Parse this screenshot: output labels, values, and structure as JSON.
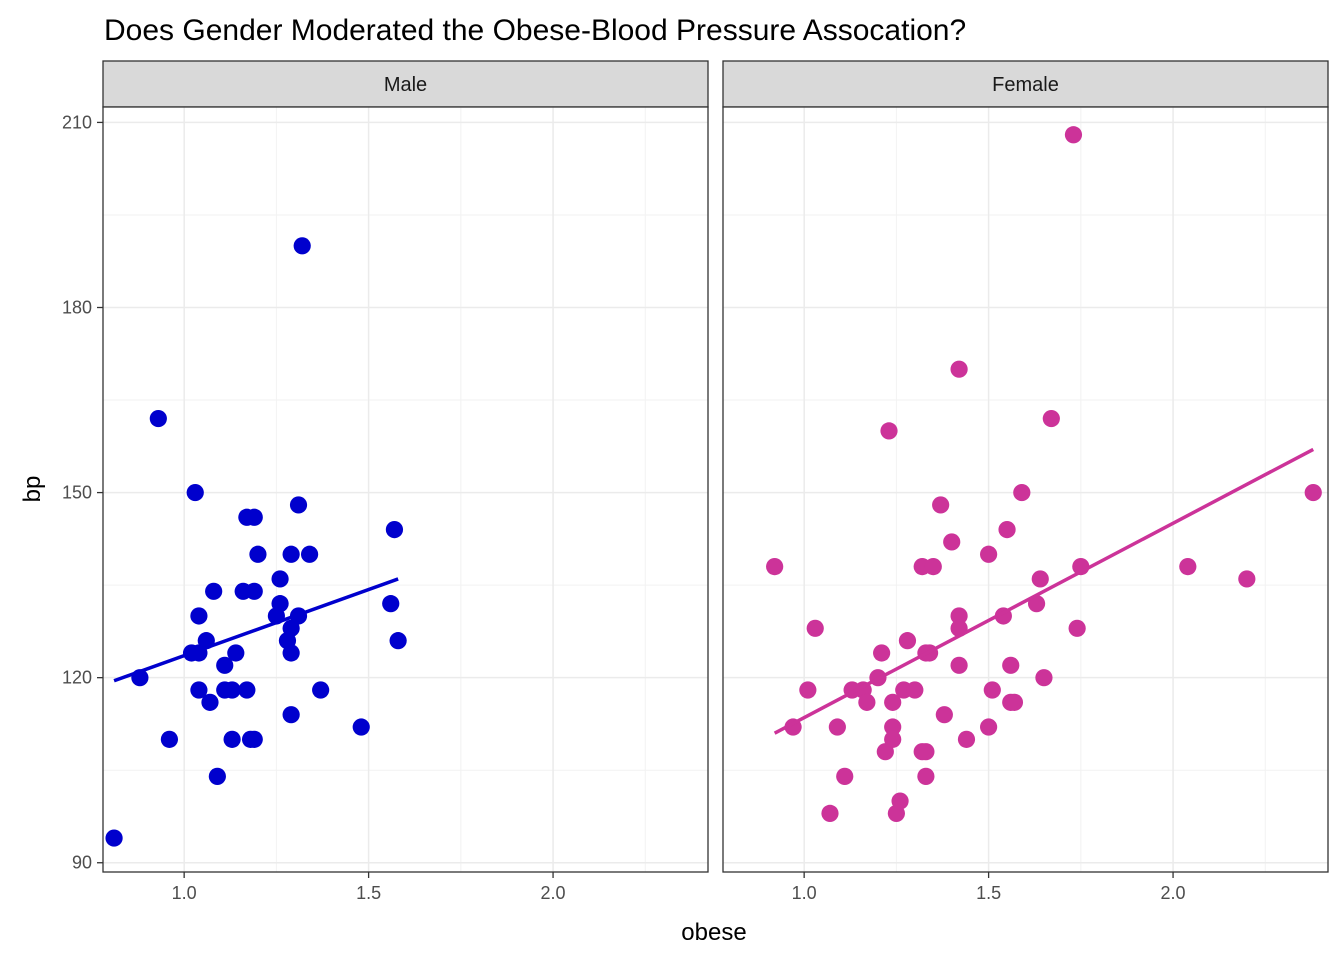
{
  "chart_data": {
    "type": "scatter",
    "title": "Does Gender Moderated the Obese-Blood Pressure Assocation?",
    "xlabel": "obese",
    "ylabel": "bp",
    "xlim": [
      0.78,
      2.42
    ],
    "ylim": [
      88.5,
      212.5
    ],
    "x_ticks": [
      1.0,
      1.5,
      2.0
    ],
    "x_tick_labels": [
      "1.0",
      "1.5",
      "2.0"
    ],
    "y_ticks": [
      90,
      120,
      150,
      180,
      210
    ],
    "y_tick_labels": [
      "90",
      "120",
      "150",
      "180",
      "210"
    ],
    "grid": true,
    "legend": "none",
    "facets": [
      {
        "label": "Male",
        "color": "#0000CD",
        "points": [
          [
            0.81,
            94
          ],
          [
            0.88,
            120
          ],
          [
            0.93,
            162
          ],
          [
            0.96,
            110
          ],
          [
            1.02,
            124
          ],
          [
            1.03,
            150
          ],
          [
            1.04,
            124
          ],
          [
            1.04,
            118
          ],
          [
            1.04,
            130
          ],
          [
            1.06,
            126
          ],
          [
            1.07,
            116
          ],
          [
            1.08,
            134
          ],
          [
            1.09,
            104
          ],
          [
            1.11,
            118
          ],
          [
            1.11,
            122
          ],
          [
            1.13,
            118
          ],
          [
            1.13,
            110
          ],
          [
            1.14,
            124
          ],
          [
            1.16,
            134
          ],
          [
            1.17,
            118
          ],
          [
            1.17,
            146
          ],
          [
            1.18,
            110
          ],
          [
            1.19,
            146
          ],
          [
            1.19,
            110
          ],
          [
            1.19,
            134
          ],
          [
            1.2,
            140
          ],
          [
            1.25,
            130
          ],
          [
            1.26,
            132
          ],
          [
            1.26,
            136
          ],
          [
            1.28,
            126
          ],
          [
            1.29,
            114
          ],
          [
            1.29,
            128
          ],
          [
            1.29,
            124
          ],
          [
            1.29,
            140
          ],
          [
            1.31,
            130
          ],
          [
            1.31,
            148
          ],
          [
            1.32,
            190
          ],
          [
            1.34,
            140
          ],
          [
            1.37,
            118
          ],
          [
            1.48,
            112
          ],
          [
            1.56,
            132
          ],
          [
            1.57,
            144
          ],
          [
            1.58,
            126
          ]
        ],
        "fit_line": {
          "x": [
            0.81,
            1.58
          ],
          "y": [
            119.5,
            136
          ]
        }
      },
      {
        "label": "Female",
        "color": "#CC3399",
        "points": [
          [
            0.92,
            138
          ],
          [
            0.97,
            112
          ],
          [
            1.01,
            118
          ],
          [
            1.03,
            128
          ],
          [
            1.07,
            98
          ],
          [
            1.09,
            112
          ],
          [
            1.11,
            104
          ],
          [
            1.13,
            118
          ],
          [
            1.16,
            118
          ],
          [
            1.17,
            116
          ],
          [
            1.2,
            120
          ],
          [
            1.21,
            124
          ],
          [
            1.22,
            108
          ],
          [
            1.23,
            160
          ],
          [
            1.24,
            116
          ],
          [
            1.24,
            112
          ],
          [
            1.24,
            110
          ],
          [
            1.25,
            98
          ],
          [
            1.26,
            100
          ],
          [
            1.27,
            118
          ],
          [
            1.28,
            126
          ],
          [
            1.3,
            118
          ],
          [
            1.32,
            108
          ],
          [
            1.32,
            138
          ],
          [
            1.33,
            108
          ],
          [
            1.33,
            104
          ],
          [
            1.33,
            124
          ],
          [
            1.34,
            124
          ],
          [
            1.35,
            138
          ],
          [
            1.37,
            148
          ],
          [
            1.38,
            114
          ],
          [
            1.4,
            142
          ],
          [
            1.42,
            170
          ],
          [
            1.42,
            122
          ],
          [
            1.42,
            130
          ],
          [
            1.42,
            128
          ],
          [
            1.44,
            110
          ],
          [
            1.5,
            112
          ],
          [
            1.5,
            140
          ],
          [
            1.51,
            118
          ],
          [
            1.54,
            130
          ],
          [
            1.55,
            144
          ],
          [
            1.56,
            122
          ],
          [
            1.56,
            116
          ],
          [
            1.57,
            116
          ],
          [
            1.59,
            150
          ],
          [
            1.63,
            132
          ],
          [
            1.64,
            136
          ],
          [
            1.65,
            120
          ],
          [
            1.67,
            162
          ],
          [
            1.73,
            208
          ],
          [
            1.74,
            128
          ],
          [
            1.75,
            138
          ],
          [
            2.04,
            138
          ],
          [
            2.2,
            136
          ],
          [
            2.38,
            150
          ]
        ],
        "fit_line": {
          "x": [
            0.92,
            2.38
          ],
          "y": [
            111,
            157
          ]
        }
      }
    ]
  }
}
